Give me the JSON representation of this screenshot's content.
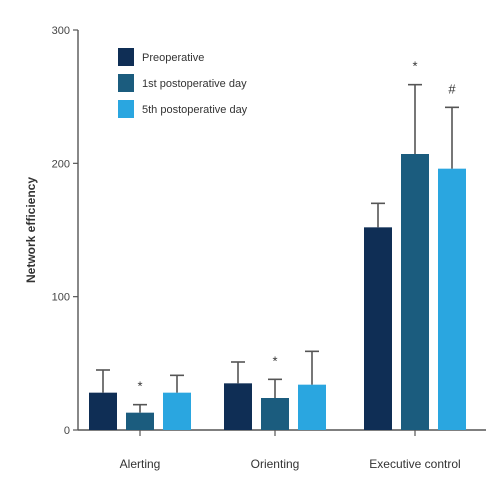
{
  "chart_data": {
    "type": "bar",
    "title": "",
    "xlabel": "",
    "ylabel": "Network efficiency",
    "ylim": [
      0,
      300
    ],
    "yticks": [
      "0",
      "100",
      "200",
      "300"
    ],
    "grid": false,
    "legend_position": "top-left",
    "categories": [
      "Alerting",
      "Orienting",
      "Executive control"
    ],
    "series": [
      {
        "name": "Preoperative",
        "color": "#0f2e55",
        "values": [
          28,
          35,
          152
        ],
        "errors": [
          17,
          16,
          18
        ],
        "markers": [
          "",
          "",
          ""
        ]
      },
      {
        "name": "1st postoperative day",
        "color": "#1b5c7e",
        "values": [
          13,
          24,
          207
        ],
        "errors": [
          6,
          14,
          52
        ],
        "markers": [
          "*",
          "*",
          "*"
        ]
      },
      {
        "name": "5th postoperative day",
        "color": "#2aa6e0",
        "values": [
          28,
          34,
          196
        ],
        "errors": [
          13,
          25,
          46
        ],
        "markers": [
          "",
          "",
          "#"
        ]
      }
    ]
  }
}
